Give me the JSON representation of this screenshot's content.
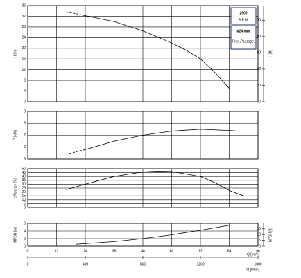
{
  "chart_data": [
    {
      "type": "line",
      "ylabel": "H [m]",
      "y2label": "H [ft]",
      "ylim": [
        0,
        36
      ],
      "yticks": [
        0,
        4,
        8,
        12,
        16,
        20,
        24,
        28,
        32,
        36
      ],
      "y2lim": [
        0,
        118.1
      ],
      "y2ticks": [
        0,
        20,
        40,
        60,
        80,
        100
      ],
      "annotations": [
        "2900",
        "R.P.M.",
        "ø24 mm",
        "Free Passage."
      ],
      "series": [
        {
          "color": "#000000",
          "dash": true,
          "x": [
            16,
            20,
            24
          ],
          "values": [
            33.5,
            33,
            32.2
          ]
        },
        {
          "color": "#000000",
          "x": [
            24,
            36,
            48,
            60,
            66,
            72,
            78,
            84
          ],
          "values": [
            32.2,
            30,
            26.5,
            22,
            19.3,
            16,
            11,
            5
          ]
        }
      ]
    },
    {
      "type": "line",
      "ylabel": "P [kW]",
      "ylim": [
        5,
        9
      ],
      "yticks": [
        5,
        6,
        7,
        8,
        9
      ],
      "series": [
        {
          "color": "#000000",
          "dash": true,
          "x": [
            16,
            20,
            24
          ],
          "values": [
            5.4,
            5.6,
            5.8
          ]
        },
        {
          "color": "#000000",
          "x": [
            24,
            36,
            48,
            60,
            72,
            84,
            88
          ],
          "values": [
            5.8,
            6.5,
            7.0,
            7.35,
            7.5,
            7.4,
            7.35
          ]
        }
      ]
    },
    {
      "type": "line",
      "ylabel": "efficiency [%]",
      "ylim": [
        0,
        50
      ],
      "yticks": [
        0,
        5,
        10,
        15,
        20,
        25,
        30,
        35,
        40,
        45,
        50
      ],
      "series": [
        {
          "color": "#000000",
          "x": [
            16,
            24,
            36,
            48,
            54,
            60,
            72,
            78,
            84,
            90
          ],
          "values": [
            23,
            30,
            40,
            46,
            47,
            46.5,
            40,
            32,
            22,
            15
          ]
        }
      ]
    },
    {
      "type": "line",
      "ylabel": "NPSH [m]",
      "y2label": "NPSH [ft]",
      "ylim": [
        0,
        6
      ],
      "yticks": [
        0,
        2,
        4,
        6
      ],
      "y2lim": [
        0,
        19.7
      ],
      "y2ticks": [
        0,
        5,
        10,
        15
      ],
      "xlabel": "Q [m³/h]",
      "xlim": [
        0,
        96
      ],
      "xticks": [
        0,
        12,
        24,
        36,
        48,
        60,
        72,
        84,
        96
      ],
      "x2label": "Q [l/min]",
      "x2lim": [
        0,
        1600
      ],
      "x2ticks": [
        0,
        400,
        800,
        1200,
        1600
      ],
      "series": [
        {
          "color": "#000000",
          "x": [
            20,
            36,
            48,
            60,
            72,
            84
          ],
          "values": [
            0.5,
            1.2,
            2,
            3,
            4.2,
            5.5
          ]
        }
      ]
    }
  ]
}
